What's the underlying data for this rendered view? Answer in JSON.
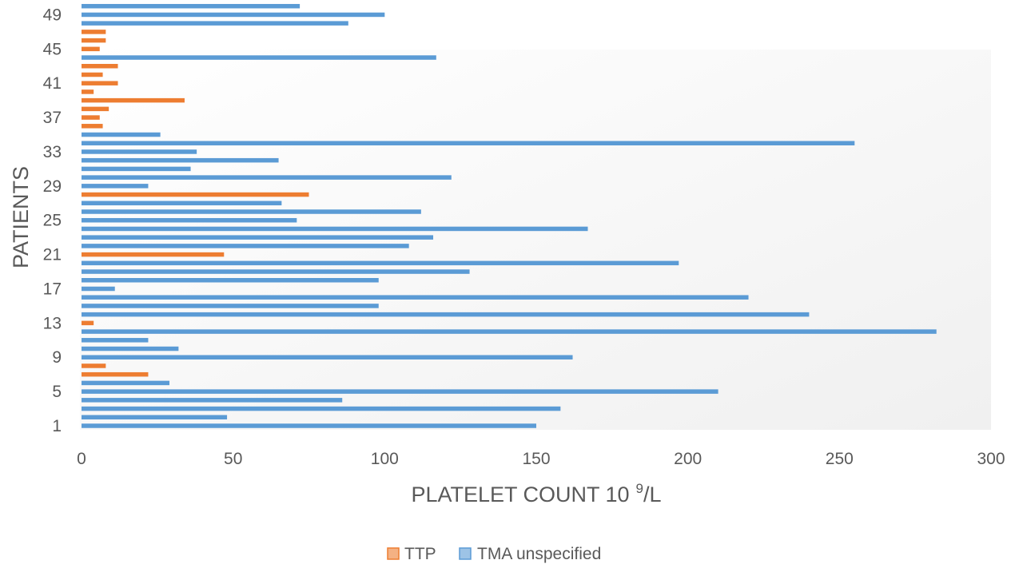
{
  "chart_data": {
    "type": "bar",
    "orientation": "horizontal",
    "xlabel_main": "PLATELET COUNT 10",
    "xlabel_sup": "9",
    "xlabel_tail": "/L",
    "ylabel": "PATIENTS",
    "xlim": [
      0,
      300
    ],
    "x_ticks": [
      "0",
      "50",
      "100",
      "150",
      "200",
      "250",
      "300"
    ],
    "y_ticks": [
      "1",
      "5",
      "9",
      "13",
      "17",
      "21",
      "25",
      "29",
      "33",
      "37",
      "41",
      "45",
      "49"
    ],
    "grid": false,
    "legend_position": "bottom",
    "series": [
      {
        "name": "TTP",
        "color": "#ED7D31"
      },
      {
        "name": "TMA unspecified",
        "color": "#5B9BD5"
      }
    ],
    "patients": [
      {
        "patient": 1,
        "value": 150,
        "series": "TMA unspecified"
      },
      {
        "patient": 2,
        "value": 48,
        "series": "TMA unspecified"
      },
      {
        "patient": 3,
        "value": 158,
        "series": "TMA unspecified"
      },
      {
        "patient": 4,
        "value": 86,
        "series": "TMA unspecified"
      },
      {
        "patient": 5,
        "value": 210,
        "series": "TMA unspecified"
      },
      {
        "patient": 6,
        "value": 29,
        "series": "TMA unspecified"
      },
      {
        "patient": 7,
        "value": 22,
        "series": "TTP"
      },
      {
        "patient": 8,
        "value": 8,
        "series": "TTP"
      },
      {
        "patient": 9,
        "value": 162,
        "series": "TMA unspecified"
      },
      {
        "patient": 10,
        "value": 32,
        "series": "TMA unspecified"
      },
      {
        "patient": 11,
        "value": 22,
        "series": "TMA unspecified"
      },
      {
        "patient": 12,
        "value": 282,
        "series": "TMA unspecified"
      },
      {
        "patient": 13,
        "value": 4,
        "series": "TTP"
      },
      {
        "patient": 14,
        "value": 240,
        "series": "TMA unspecified"
      },
      {
        "patient": 15,
        "value": 98,
        "series": "TMA unspecified"
      },
      {
        "patient": 16,
        "value": 220,
        "series": "TMA unspecified"
      },
      {
        "patient": 17,
        "value": 11,
        "series": "TMA unspecified"
      },
      {
        "patient": 18,
        "value": 98,
        "series": "TMA unspecified"
      },
      {
        "patient": 19,
        "value": 128,
        "series": "TMA unspecified"
      },
      {
        "patient": 20,
        "value": 197,
        "series": "TMA unspecified"
      },
      {
        "patient": 21,
        "value": 47,
        "series": "TTP"
      },
      {
        "patient": 22,
        "value": 108,
        "series": "TMA unspecified"
      },
      {
        "patient": 23,
        "value": 116,
        "series": "TMA unspecified"
      },
      {
        "patient": 24,
        "value": 167,
        "series": "TMA unspecified"
      },
      {
        "patient": 25,
        "value": 71,
        "series": "TMA unspecified"
      },
      {
        "patient": 26,
        "value": 112,
        "series": "TMA unspecified"
      },
      {
        "patient": 27,
        "value": 66,
        "series": "TMA unspecified"
      },
      {
        "patient": 28,
        "value": 75,
        "series": "TTP"
      },
      {
        "patient": 29,
        "value": 22,
        "series": "TMA unspecified"
      },
      {
        "patient": 30,
        "value": 122,
        "series": "TMA unspecified"
      },
      {
        "patient": 31,
        "value": 36,
        "series": "TMA unspecified"
      },
      {
        "patient": 32,
        "value": 65,
        "series": "TMA unspecified"
      },
      {
        "patient": 33,
        "value": 38,
        "series": "TMA unspecified"
      },
      {
        "patient": 34,
        "value": 255,
        "series": "TMA unspecified"
      },
      {
        "patient": 35,
        "value": 26,
        "series": "TMA unspecified"
      },
      {
        "patient": 36,
        "value": 7,
        "series": "TTP"
      },
      {
        "patient": 37,
        "value": 6,
        "series": "TTP"
      },
      {
        "patient": 38,
        "value": 9,
        "series": "TTP"
      },
      {
        "patient": 39,
        "value": 34,
        "series": "TTP"
      },
      {
        "patient": 40,
        "value": 4,
        "series": "TTP"
      },
      {
        "patient": 41,
        "value": 12,
        "series": "TTP"
      },
      {
        "patient": 42,
        "value": 7,
        "series": "TTP"
      },
      {
        "patient": 43,
        "value": 12,
        "series": "TTP"
      },
      {
        "patient": 44,
        "value": 117,
        "series": "TMA unspecified"
      },
      {
        "patient": 45,
        "value": 6,
        "series": "TTP"
      },
      {
        "patient": 46,
        "value": 8,
        "series": "TTP"
      },
      {
        "patient": 47,
        "value": 8,
        "series": "TTP"
      },
      {
        "patient": 48,
        "value": 88,
        "series": "TMA unspecified"
      },
      {
        "patient": 49,
        "value": 100,
        "series": "TMA unspecified"
      },
      {
        "patient": 50,
        "value": 72,
        "series": "TMA unspecified"
      }
    ]
  }
}
